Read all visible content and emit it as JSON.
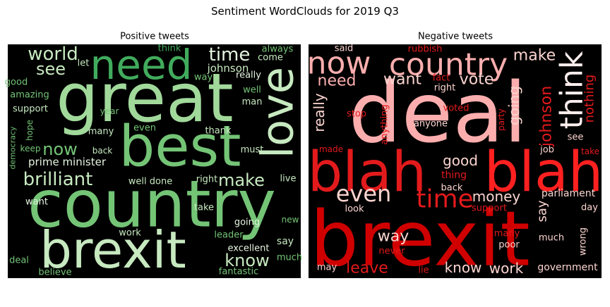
{
  "title": "Sentiment WordClouds for 2019 Q3",
  "panels": [
    {
      "title": "Positive tweets",
      "words": [
        "great",
        "best",
        "country",
        "brexit",
        "need",
        "love",
        "world",
        "see",
        "time",
        "johnson",
        "now",
        "brilliant",
        "prime minister",
        "make",
        "know",
        "really",
        "well",
        "man",
        "always",
        "come",
        "think",
        "let",
        "way",
        "good",
        "amazing",
        "support",
        "year",
        "hope",
        "democracy",
        "keep",
        "even",
        "many",
        "thank",
        "back",
        "must",
        "well done",
        "right",
        "live",
        "want",
        "take",
        "going",
        "new",
        "leader",
        "work",
        "say",
        "excellent",
        "much",
        "deal",
        "believe",
        "fantastic"
      ]
    },
    {
      "title": "Negative tweets",
      "words": [
        "deal",
        "blah",
        "blah",
        "brexit",
        "now",
        "country",
        "think",
        "make",
        "want",
        "vote",
        "need",
        "said",
        "rubbish",
        "fact",
        "right",
        "johnson",
        "nothing",
        "going",
        "really",
        "stop",
        "anything",
        "voted",
        "anyone",
        "party",
        "see",
        "made",
        "job",
        "take",
        "good",
        "thing",
        "back",
        "even",
        "time",
        "money",
        "parliament",
        "look",
        "support",
        "say",
        "day",
        "way",
        "many",
        "much",
        "poor",
        "wrong",
        "never",
        "leave",
        "lie",
        "know",
        "work",
        "government",
        "may"
      ]
    }
  ]
}
